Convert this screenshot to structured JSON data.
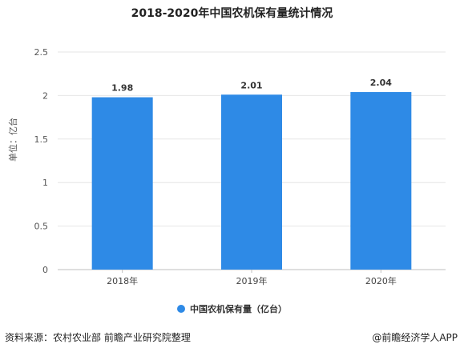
{
  "chart_data": {
    "type": "bar",
    "title": "2018-2020年中国农机保有量统计情况",
    "categories": [
      "2018年",
      "2019年",
      "2020年"
    ],
    "series": [
      {
        "name": "中国农机保有量（亿台）",
        "values": [
          1.98,
          2.01,
          2.04
        ],
        "color": "#2e8ae6"
      }
    ],
    "data_labels": [
      "1.98",
      "2.01",
      "2.04"
    ],
    "ylabel": "单位：亿台",
    "xlabel": "",
    "ylim": [
      0,
      2.5
    ],
    "yticks": [
      "0",
      "0.5",
      "1",
      "1.5",
      "2",
      "2.5"
    ],
    "grid": true,
    "legend_position": "bottom"
  },
  "footer": {
    "source": "资料来源：农村农业部 前瞻产业研究院整理",
    "credit": "@前瞻经济学人APP"
  }
}
